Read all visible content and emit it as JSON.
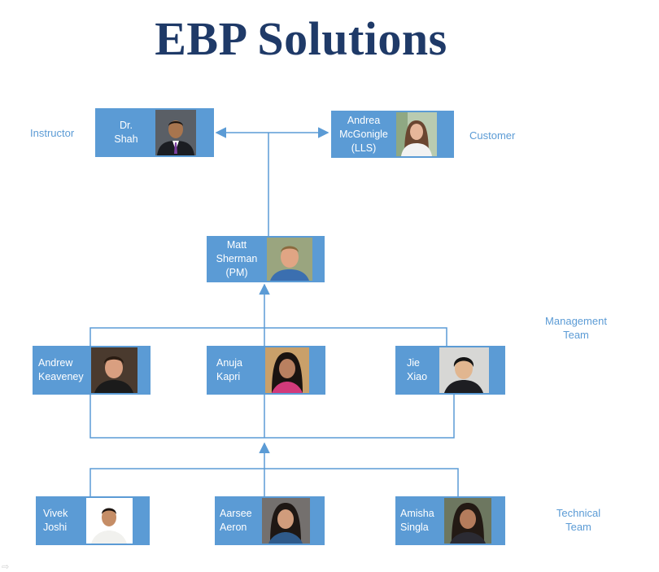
{
  "title": "EBP Solutions",
  "labels": {
    "instructor": "Instructor",
    "customer": "Customer",
    "management_l1": "Management",
    "management_l2": "Team",
    "technical_l1": "Technical",
    "technical_l2": "Team"
  },
  "people": {
    "shah": [
      "Dr.",
      "Shah"
    ],
    "mcgonigle": [
      "Andrea",
      "McGonigle",
      "(LLS)"
    ],
    "sherman": [
      "Matt",
      "Sherman",
      "(PM)"
    ],
    "keaveney": [
      "Andrew",
      "Keaveney"
    ],
    "kapri": [
      "Anuja",
      "Kapri"
    ],
    "xiao": [
      "Jie",
      "Xiao"
    ],
    "joshi": [
      "Vivek",
      "Joshi"
    ],
    "aeron": [
      "Aarsee",
      "Aeron"
    ],
    "singla": [
      "Amisha",
      "Singla"
    ]
  },
  "colors": {
    "box": "#5b9bd5",
    "title": "#1f3a68",
    "line": "#5b9bd5"
  }
}
